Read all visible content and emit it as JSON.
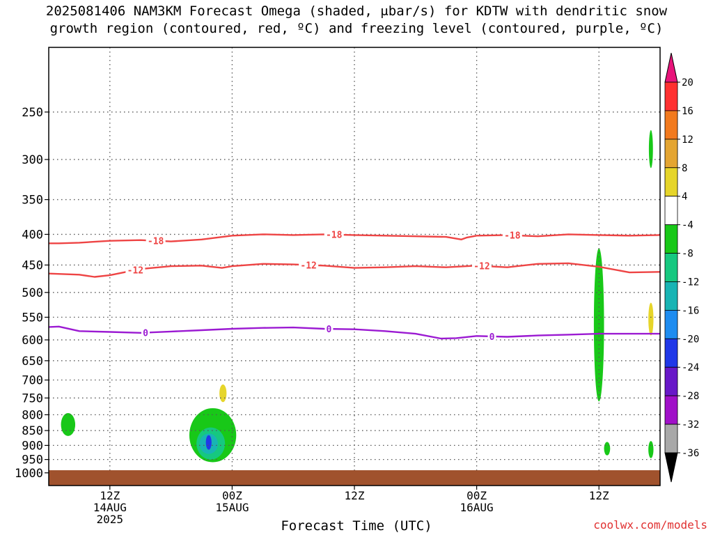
{
  "title": {
    "line1": "2025081406 NAM3KM Forecast Omega (shaded, μbar/s) for KDTW with dendritic snow",
    "line2": "growth region (contoured, red, ºC) and freezing level (contoured, purple, ºC)"
  },
  "credit": "coolwx.com/models",
  "chart_data": {
    "type": "contour",
    "title": "2025081406 NAM3KM Forecast Omega (shaded, μbar/s) for KDTW with dendritic snow growth region (contoured, red, ºC) and freezing level (contoured, purple, ºC)",
    "xlabel": "Forecast Time (UTC)",
    "ylabel": "",
    "y_scale": "log",
    "y_inverted": true,
    "x_range_hours": [
      6,
      66
    ],
    "y_range_hPa": [
      1050,
      195
    ],
    "grid": true,
    "y_ticks": [
      250,
      300,
      350,
      400,
      450,
      500,
      550,
      600,
      650,
      700,
      750,
      800,
      850,
      900,
      950,
      1000
    ],
    "x_ticks": [
      {
        "hour": 12,
        "lines": [
          "12Z",
          "14AUG",
          "2025"
        ]
      },
      {
        "hour": 24,
        "lines": [
          "00Z",
          "15AUG"
        ]
      },
      {
        "hour": 36,
        "lines": [
          "12Z"
        ]
      },
      {
        "hour": 48,
        "lines": [
          "00Z",
          "16AUG"
        ]
      },
      {
        "hour": 60,
        "lines": [
          "12Z"
        ]
      }
    ],
    "ground_level_hPa": 990,
    "ground_color": "#a0522d",
    "colorbar": {
      "labels": [
        "20",
        "16",
        "12",
        "8",
        "4",
        "-4",
        "-8",
        "-12",
        "-16",
        "-20",
        "-24",
        "-28",
        "-32",
        "-36"
      ],
      "bins": [
        {
          "color": "#ff3030"
        },
        {
          "color": "#f27a1e"
        },
        {
          "color": "#e4a532"
        },
        {
          "color": "#e6d52a"
        },
        {
          "color": "#ffffff"
        },
        {
          "color": "#18c818"
        },
        {
          "color": "#16c880"
        },
        {
          "color": "#18b4b4"
        },
        {
          "color": "#1e8cf0"
        },
        {
          "color": "#2038e8"
        },
        {
          "color": "#6818c8"
        },
        {
          "color": "#a010c8"
        },
        {
          "color": "#a8a8a8"
        }
      ],
      "top_arrow_color": "#e8147a",
      "bottom_arrow_color": "#000000"
    },
    "contours": [
      {
        "label": "-18",
        "color": "#ee4444",
        "points": [
          [
            6,
            414
          ],
          [
            7,
            414
          ],
          [
            9,
            413
          ],
          [
            12,
            410
          ],
          [
            15,
            409
          ],
          [
            18,
            411
          ],
          [
            21,
            408
          ],
          [
            24,
            402
          ],
          [
            27,
            400
          ],
          [
            30,
            401
          ],
          [
            33,
            400
          ],
          [
            36,
            401
          ],
          [
            39,
            402
          ],
          [
            42,
            403
          ],
          [
            45,
            404
          ],
          [
            46.5,
            408
          ],
          [
            47,
            405
          ],
          [
            48,
            402
          ],
          [
            51,
            401
          ],
          [
            54,
            403
          ],
          [
            57,
            400
          ],
          [
            60,
            401
          ],
          [
            63,
            402
          ],
          [
            66,
            401
          ]
        ],
        "label_hours": [
          16.5,
          34,
          51.5
        ]
      },
      {
        "label": "-12",
        "color": "#ee4444",
        "points": [
          [
            6,
            465
          ],
          [
            9,
            467
          ],
          [
            10.5,
            471
          ],
          [
            12,
            468
          ],
          [
            15,
            457
          ],
          [
            18,
            452
          ],
          [
            21,
            451
          ],
          [
            23,
            455
          ],
          [
            24,
            452
          ],
          [
            27,
            448
          ],
          [
            30,
            449
          ],
          [
            33,
            451
          ],
          [
            36,
            455
          ],
          [
            39,
            454
          ],
          [
            42,
            452
          ],
          [
            45,
            454
          ],
          [
            48,
            451
          ],
          [
            51,
            454
          ],
          [
            54,
            448
          ],
          [
            57,
            447
          ],
          [
            60,
            453
          ],
          [
            63,
            463
          ],
          [
            66,
            462
          ]
        ],
        "label_hours": [
          14.5,
          31.5,
          48.5
        ]
      },
      {
        "label": "0",
        "color": "#9b1ad2",
        "points": [
          [
            6,
            571
          ],
          [
            7,
            570
          ],
          [
            9,
            580
          ],
          [
            12,
            582
          ],
          [
            15,
            584
          ],
          [
            18,
            581
          ],
          [
            21,
            578
          ],
          [
            24,
            575
          ],
          [
            27,
            573
          ],
          [
            30,
            572
          ],
          [
            33,
            575
          ],
          [
            36,
            576
          ],
          [
            39,
            580
          ],
          [
            42,
            586
          ],
          [
            44.5,
            597
          ],
          [
            46,
            596
          ],
          [
            48,
            591
          ],
          [
            51,
            593
          ],
          [
            54,
            590
          ],
          [
            57,
            588
          ],
          [
            60,
            586
          ],
          [
            63,
            586
          ],
          [
            66,
            586
          ]
        ],
        "label_hours": [
          15.5,
          33.5,
          49.5
        ]
      }
    ],
    "features": [
      {
        "color": "#18c818",
        "hour_center": 7.9,
        "hour_halfwidth": 0.7,
        "hpa_top": 795,
        "hpa_bottom": 868
      },
      {
        "color": "#18c818",
        "hour_center": 22.1,
        "hour_halfwidth": 2.3,
        "hpa_top": 780,
        "hpa_bottom": 960
      },
      {
        "color": "#16c880",
        "hour_center": 21.9,
        "hour_halfwidth": 1.4,
        "hpa_top": 840,
        "hpa_bottom": 950
      },
      {
        "color": "#18b4b4",
        "hour_center": 21.7,
        "hour_halfwidth": 0.9,
        "hpa_top": 860,
        "hpa_bottom": 930
      },
      {
        "color": "#2038e8",
        "hour_center": 21.7,
        "hour_halfwidth": 0.28,
        "hpa_top": 865,
        "hpa_bottom": 915
      },
      {
        "color": "#e6d52a",
        "hour_center": 23.1,
        "hour_halfwidth": 0.35,
        "hpa_top": 712,
        "hpa_bottom": 762
      },
      {
        "color": "#18c818",
        "hour_center": 60.0,
        "hour_halfwidth": 0.5,
        "hpa_top": 422,
        "hpa_bottom": 760
      },
      {
        "color": "#18c818",
        "hour_center": 60.8,
        "hour_halfwidth": 0.3,
        "hpa_top": 888,
        "hpa_bottom": 935
      },
      {
        "color": "#18c818",
        "hour_center": 65.1,
        "hour_halfwidth": 0.25,
        "hpa_top": 885,
        "hpa_bottom": 945
      },
      {
        "color": "#18c818",
        "hour_center": 65.1,
        "hour_halfwidth": 0.2,
        "hpa_top": 268,
        "hpa_bottom": 310
      },
      {
        "color": "#e6d52a",
        "hour_center": 65.1,
        "hour_halfwidth": 0.25,
        "hpa_top": 520,
        "hpa_bottom": 590
      }
    ]
  }
}
